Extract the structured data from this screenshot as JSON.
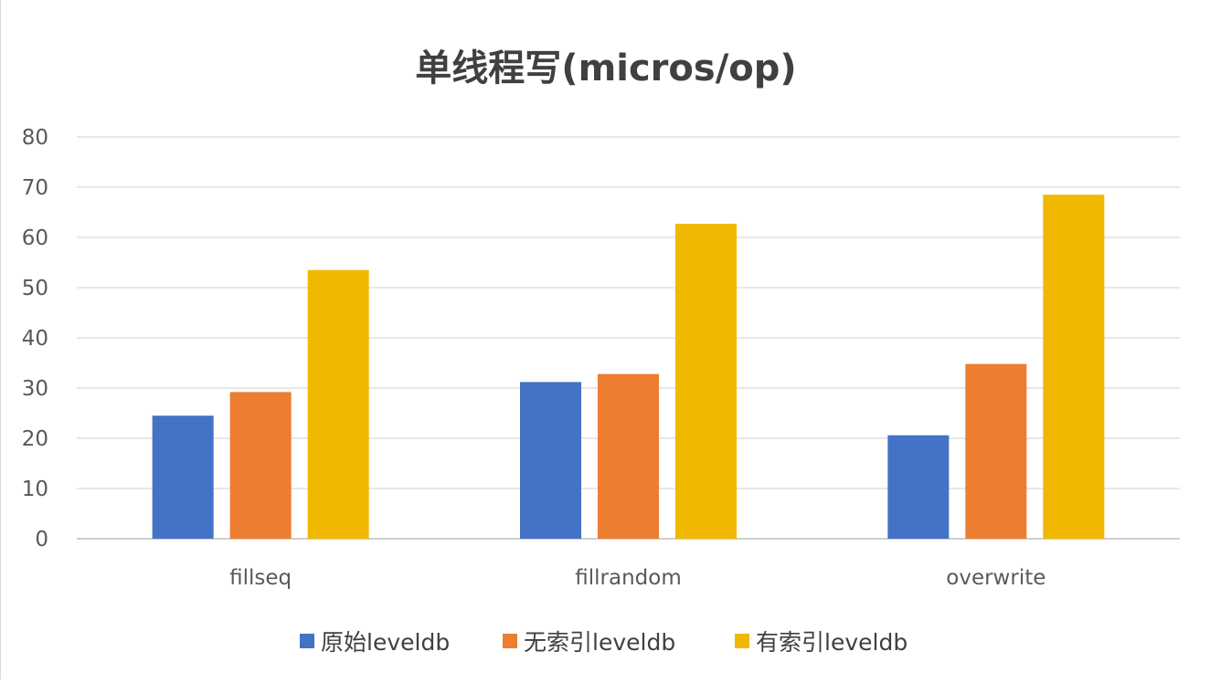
{
  "chart_data": {
    "type": "bar",
    "title": "单线程写(micros/op)",
    "xlabel": "",
    "ylabel": "",
    "categories": [
      "fillseq",
      "fillrandom",
      "overwrite"
    ],
    "series": [
      {
        "name": "原始leveldb",
        "color": "#4472C4",
        "values": [
          24.5,
          31.2,
          20.6
        ]
      },
      {
        "name": "无索引leveldb",
        "color": "#ED7D31",
        "values": [
          29.2,
          32.8,
          34.8
        ]
      },
      {
        "name": "有索引leveldb",
        "color": "#F0B800",
        "values": [
          53.5,
          62.7,
          68.5
        ]
      }
    ],
    "ylim": [
      0,
      80
    ],
    "yticks": [
      0,
      10,
      20,
      30,
      40,
      50,
      60,
      70,
      80
    ],
    "grid": true,
    "legend_position": "bottom"
  }
}
